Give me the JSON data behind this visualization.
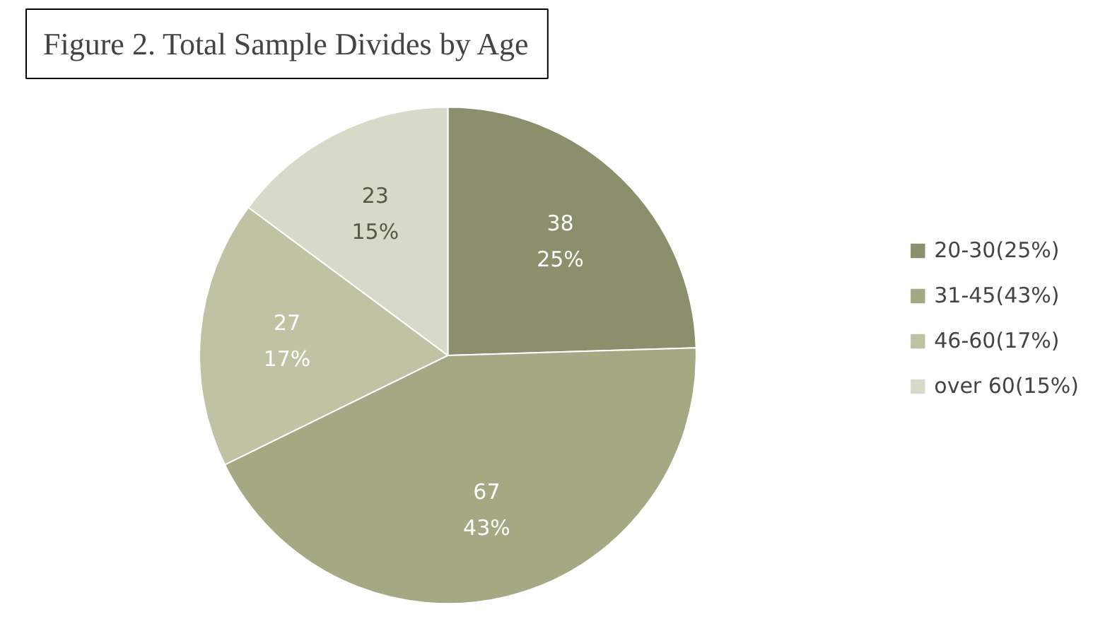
{
  "chart_data": {
    "type": "pie",
    "title": "Figure 2. Total Sample Divides by Age",
    "categories": [
      "20-30(25%)",
      "31-45(43%)",
      "46-60(17%)",
      "over 60(15%)"
    ],
    "values": [
      38,
      67,
      27,
      23
    ],
    "colors": [
      "#8b8f6c",
      "#a4a883",
      "#bfc2a3",
      "#d8dac9"
    ],
    "value_labels": [
      "38\n25%",
      "67\n43%",
      "27\n17%",
      "23\n15%"
    ],
    "legend": "right"
  }
}
